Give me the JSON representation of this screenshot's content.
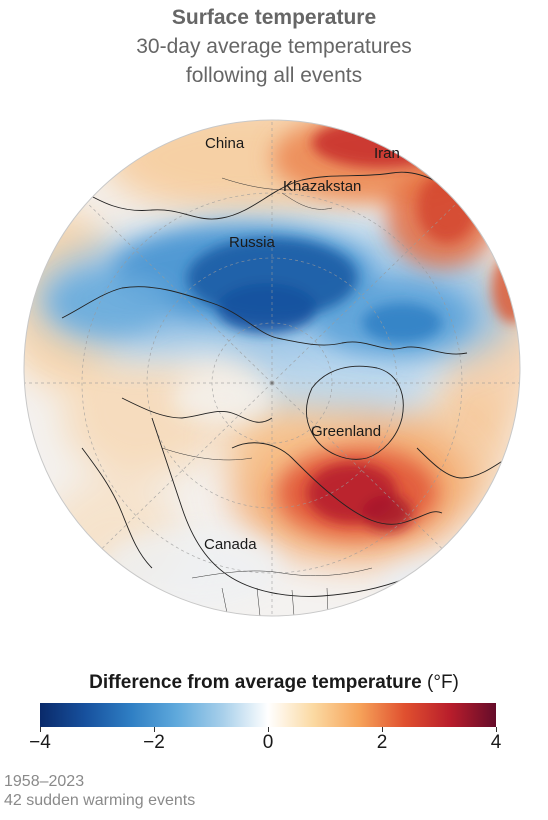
{
  "header": {
    "title": "Surface temperature",
    "subtitle_line1": "30-day average temperatures",
    "subtitle_line2": "following all events"
  },
  "map": {
    "projection": "polar orthographic (North Pole)",
    "labels": {
      "china": "China",
      "iran": "Iran",
      "khazakstan": "Khazakstan",
      "russia": "Russia",
      "greenland": "Greenland",
      "canada": "Canada"
    },
    "colors": {
      "cold_strong": "#0a2a6a",
      "cold": "#2f7fc4",
      "neutral": "#ffffff",
      "warm": "#f6a35a",
      "warm_strong": "#650c2a"
    }
  },
  "legend": {
    "title_main": "Difference from average temperature",
    "title_unit": " (°F)",
    "range": [
      -4,
      4
    ],
    "ticks": [
      {
        "value": -4,
        "label": "−4"
      },
      {
        "value": -2,
        "label": "−2"
      },
      {
        "value": 0,
        "label": "0"
      },
      {
        "value": 2,
        "label": "2"
      },
      {
        "value": 4,
        "label": "4"
      }
    ]
  },
  "footer": {
    "line1": "1958–2023",
    "line2": "42 sudden warming events"
  }
}
